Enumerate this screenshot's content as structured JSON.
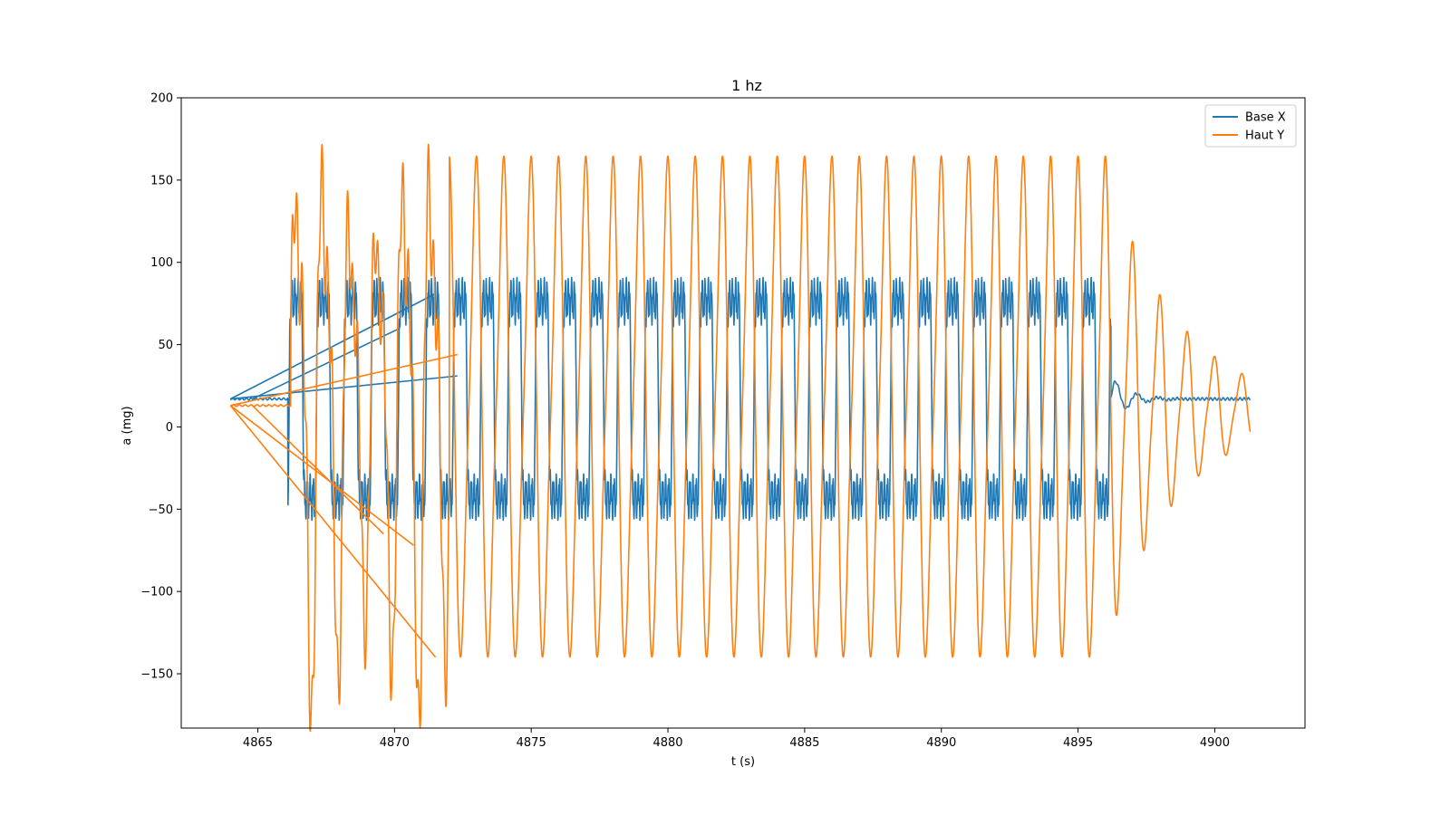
{
  "chart_data": {
    "type": "line",
    "title": "1 hz",
    "xlabel": "t (s)",
    "ylabel": "a (mg)",
    "xlim": [
      4862.2,
      4903.3
    ],
    "ylim": [
      -183,
      200
    ],
    "xticks": [
      4865,
      4870,
      4875,
      4880,
      4885,
      4890,
      4895,
      4900
    ],
    "yticks": [
      -150,
      -100,
      -50,
      0,
      50,
      100,
      150,
      200
    ],
    "ytick_labels": [
      "−150",
      "−100",
      "−50",
      "0",
      "50",
      "100",
      "150",
      "200"
    ],
    "grid": false,
    "legend_position": "top-right",
    "series": [
      {
        "name": "Base X",
        "color": "#1f77b4",
        "model": {
          "type": "square-ish oscillation",
          "frequency_hz": 1.0,
          "center": 17,
          "amplitude": 65,
          "active_range": [
            4866.1,
            4896.2
          ],
          "rest_level": 17,
          "t_start": 4864.0,
          "t_end": 4901.3
        },
        "artifact_lines": [
          [
            [
              4864.0,
              17
            ],
            [
              4871.5,
              81
            ]
          ],
          [
            [
              4864.0,
              17
            ],
            [
              4872.3,
              31
            ]
          ],
          [
            [
              4864.8,
              17
            ],
            [
              4870.2,
              60
            ]
          ]
        ]
      },
      {
        "name": "Haut Y",
        "color": "#ff7f0e",
        "model": {
          "type": "peaky oscillation",
          "frequency_hz": 1.0,
          "center": 10,
          "peak_max": 160,
          "trough_min": -140,
          "ring_start": 4866.2,
          "steady_start": 4872.0,
          "decay_start": 4896.2,
          "t_start": 4864.0,
          "t_end": 4901.3
        },
        "artifact_lines": [
          [
            [
              4864.0,
              13
            ],
            [
              4871.5,
              -140
            ]
          ],
          [
            [
              4864.0,
              13
            ],
            [
              4870.7,
              -72
            ]
          ],
          [
            [
              4864.8,
              13
            ],
            [
              4869.6,
              -65
            ]
          ],
          [
            [
              4864.0,
              13
            ],
            [
              4872.3,
              44
            ]
          ]
        ]
      }
    ]
  }
}
